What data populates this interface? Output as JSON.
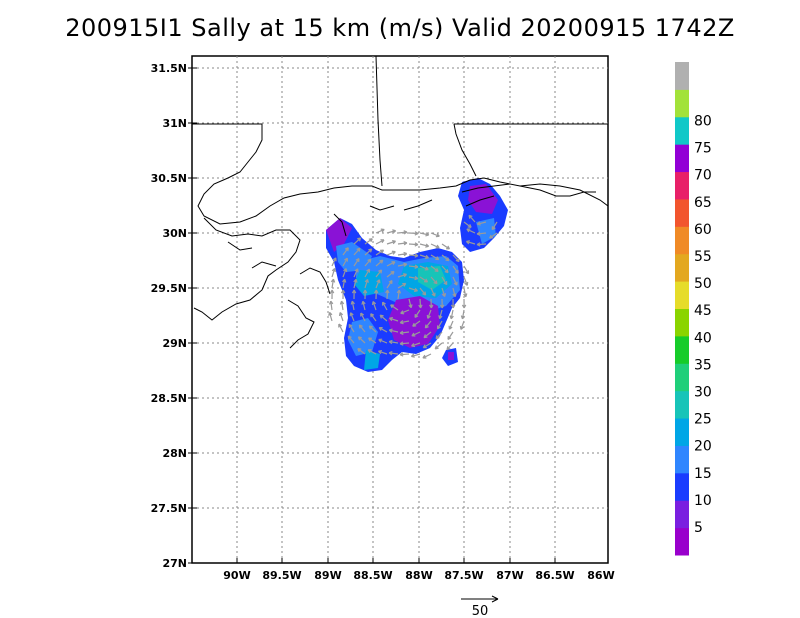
{
  "title": "200915I1 Sally at 15 km (m/s) Valid 20200915 1742Z",
  "map": {
    "lat_ticks": [
      "31.5N",
      "31N",
      "30.5N",
      "30N",
      "29.5N",
      "29N",
      "28.5N",
      "28N",
      "27.5N",
      "27N"
    ],
    "lon_ticks": [
      "90W",
      "89.5W",
      "89W",
      "88.5W",
      "88W",
      "87.5W",
      "87W",
      "86.5W",
      "86W"
    ],
    "grid": true
  },
  "colorbar": {
    "labels": [
      "5",
      "10",
      "15",
      "20",
      "25",
      "30",
      "35",
      "40",
      "45",
      "50",
      "55",
      "60",
      "65",
      "70",
      "75",
      "80"
    ],
    "colors": [
      "#9900cc",
      "#7a1fe0",
      "#1a3cff",
      "#2f86ff",
      "#00a6e6",
      "#17c4b8",
      "#1fcf7a",
      "#16cc2a",
      "#8ad400",
      "#e6dc2a",
      "#e3a820",
      "#f08a26",
      "#f2552e",
      "#e82068",
      "#9200d6",
      "#10c8c8",
      "#a2e23a",
      "#b0b0b0"
    ]
  },
  "reference_vector": {
    "label": "50"
  }
}
